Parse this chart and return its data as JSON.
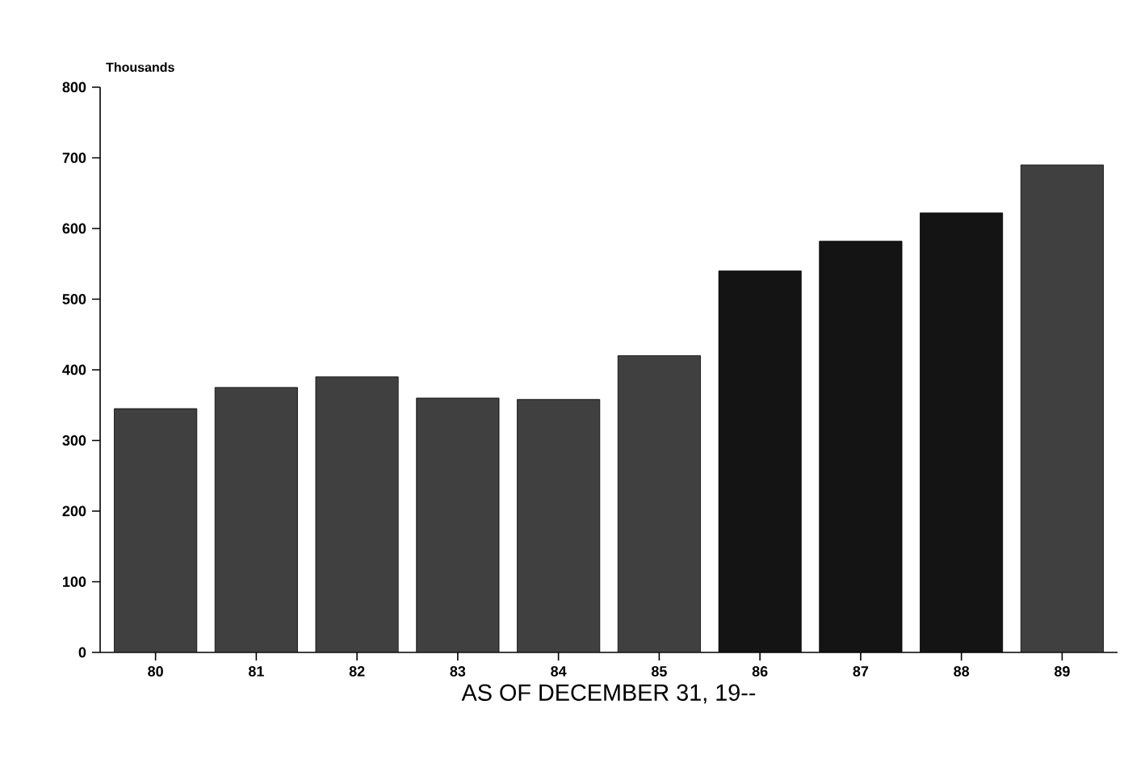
{
  "chart_data": {
    "type": "bar",
    "ylabel": "Thousands",
    "xlabel": "AS OF DECEMBER 31, 19--",
    "categories": [
      "80",
      "81",
      "82",
      "83",
      "84",
      "85",
      "86",
      "87",
      "88",
      "89"
    ],
    "values": [
      345,
      375,
      390,
      360,
      358,
      420,
      540,
      582,
      622,
      690
    ],
    "colors": [
      "#404040",
      "#404040",
      "#404040",
      "#404040",
      "#404040",
      "#404040",
      "#141414",
      "#141414",
      "#141414",
      "#404040"
    ],
    "ylim": [
      0,
      800
    ],
    "yticks": [
      0,
      100,
      200,
      300,
      400,
      500,
      600,
      700,
      800
    ],
    "grid": false
  }
}
